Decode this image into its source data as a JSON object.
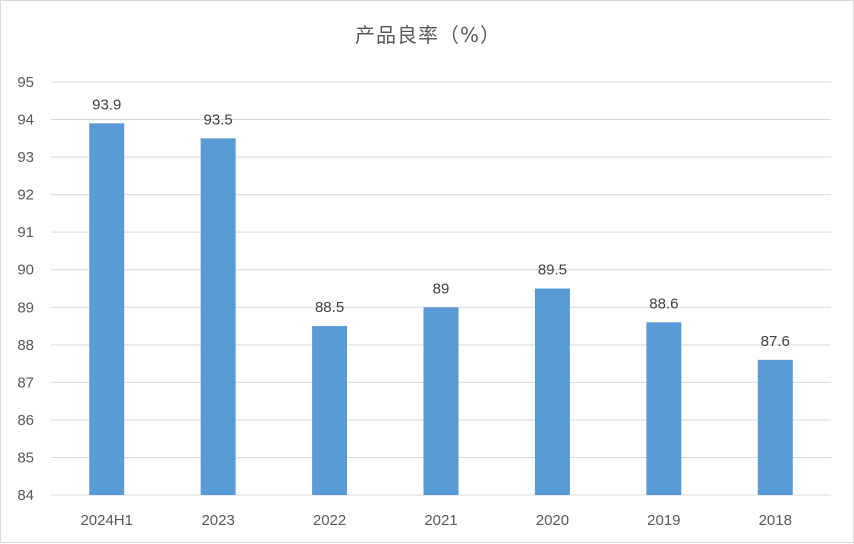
{
  "chart_data": {
    "type": "bar",
    "title": "产品良率（%）",
    "xlabel": "",
    "ylabel": "",
    "categories": [
      "2024H1",
      "2023",
      "2022",
      "2021",
      "2020",
      "2019",
      "2018"
    ],
    "values": [
      93.9,
      93.5,
      88.5,
      89,
      89.5,
      88.6,
      87.6
    ],
    "value_labels": [
      "93.9",
      "93.5",
      "88.5",
      "89",
      "89.5",
      "88.6",
      "87.6"
    ],
    "ylim": [
      84,
      95
    ],
    "yticks": [
      "84",
      "85",
      "86",
      "87",
      "88",
      "89",
      "90",
      "91",
      "92",
      "93",
      "94",
      "95"
    ],
    "grid": true,
    "legend": "none",
    "bar_color": "#5b9bd5",
    "grid_color": "#d9d9d9"
  }
}
